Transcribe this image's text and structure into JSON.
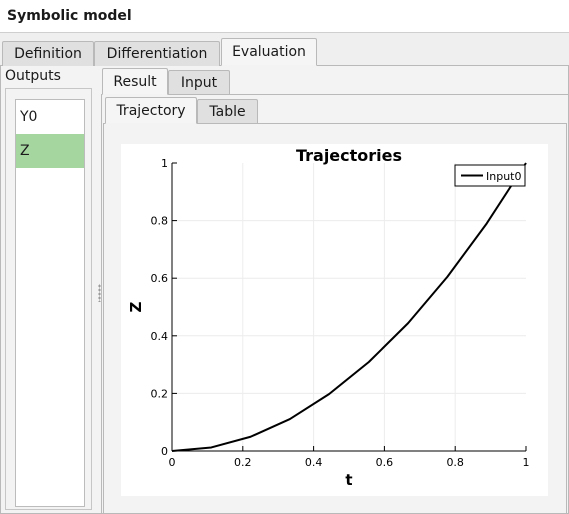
{
  "window": {
    "title": "Symbolic model"
  },
  "main_tabs": [
    "Definition",
    "Differentiation",
    "Evaluation"
  ],
  "outputs": {
    "label": "Outputs",
    "items": [
      "Y0",
      "Z"
    ],
    "selected_index": 1,
    "selected_color": "#a5d6a0"
  },
  "result_tabs": [
    "Result",
    "Input"
  ],
  "view_tabs": [
    "Trajectory",
    "Table"
  ],
  "chart_data": {
    "type": "line",
    "title": "Trajectories",
    "xlabel": "t",
    "ylabel": "Z",
    "xlim": [
      0,
      1
    ],
    "ylim": [
      0,
      1
    ],
    "xticks": [
      0,
      0.2,
      0.4,
      0.6,
      0.8,
      1
    ],
    "xtick_labels": [
      "0",
      "0.2",
      "0.4",
      "0.6",
      "0.8",
      "1"
    ],
    "yticks": [
      0,
      0.2,
      0.4,
      0.6,
      0.8,
      1
    ],
    "ytick_labels": [
      "0",
      "0.2",
      "0.4",
      "0.6",
      "0.8",
      "1"
    ],
    "grid": true,
    "legend_position": "top-right",
    "series": [
      {
        "name": "Input0",
        "color": "#000000",
        "x": [
          0,
          0.111,
          0.222,
          0.333,
          0.444,
          0.556,
          0.667,
          0.778,
          0.889,
          1.0
        ],
        "y": [
          0,
          0.0123,
          0.0494,
          0.111,
          0.198,
          0.309,
          0.444,
          0.605,
          0.79,
          1.0
        ]
      }
    ]
  }
}
